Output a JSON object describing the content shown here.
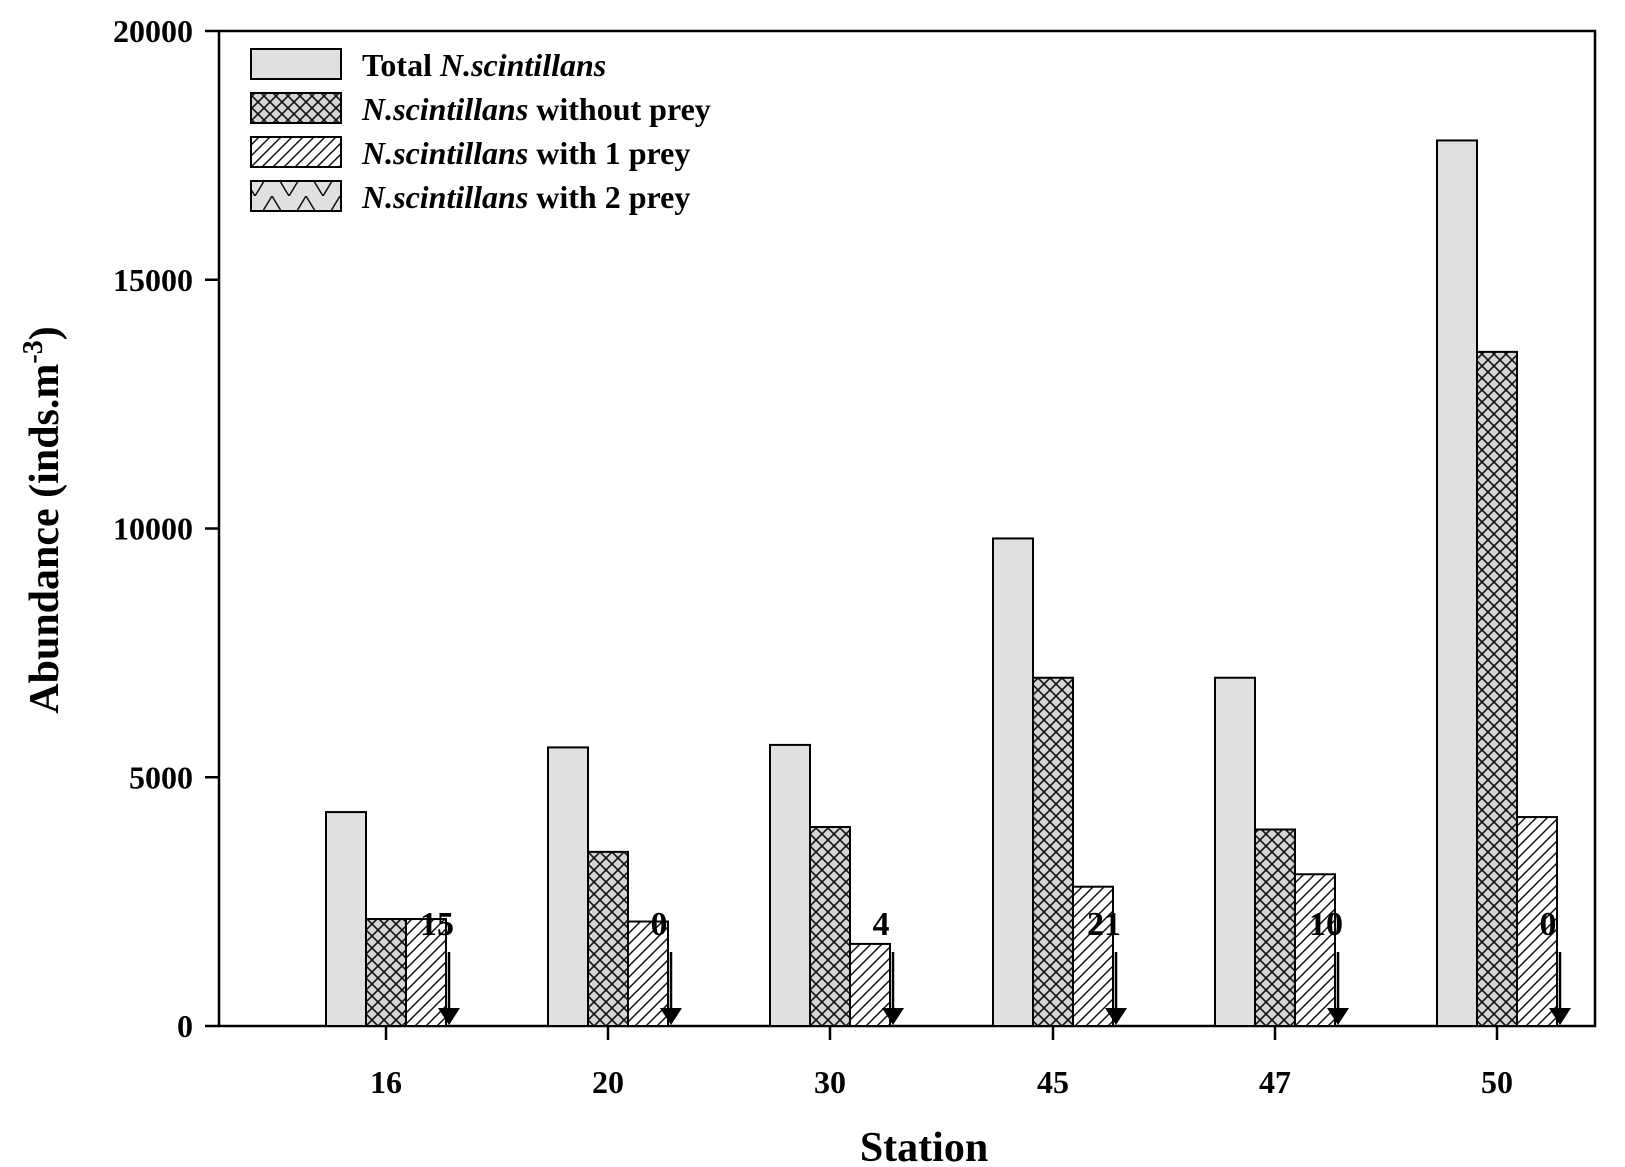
{
  "chart_data": {
    "type": "bar",
    "xlabel": "Station",
    "ylabel": "Abundance (inds.m",
    "ylabel_sup": "-3",
    "ylabel_close": ")",
    "ylim": [
      0,
      20000
    ],
    "yticks": [
      0,
      5000,
      10000,
      15000,
      20000
    ],
    "categories": [
      "16",
      "20",
      "30",
      "45",
      "47",
      "50"
    ],
    "series": [
      {
        "name_italic": "",
        "name_italic_first": "Total ",
        "name_italic_tail": "N.scintillans",
        "pattern": "solid",
        "values": [
          4300,
          5600,
          5650,
          9800,
          7000,
          17800
        ]
      },
      {
        "name_italic": "N.scintillans",
        "name_tail": " without prey",
        "pattern": "crosshatch",
        "values": [
          2150,
          3500,
          4000,
          7000,
          3950,
          13550
        ]
      },
      {
        "name_italic": "N.scintillans",
        "name_tail": " with 1 prey",
        "pattern": "diagonal",
        "values": [
          2150,
          2100,
          1650,
          2800,
          3050,
          4200
        ]
      },
      {
        "name_italic": "N.scintillans",
        "name_tail": " with 2 prey",
        "pattern": "zigzag",
        "values": [
          15,
          0,
          4,
          21,
          10,
          0
        ]
      }
    ],
    "annotations": [
      "15",
      "0",
      "4",
      "21",
      "10",
      "0"
    ],
    "legend_position": "top-left",
    "grid": false
  }
}
